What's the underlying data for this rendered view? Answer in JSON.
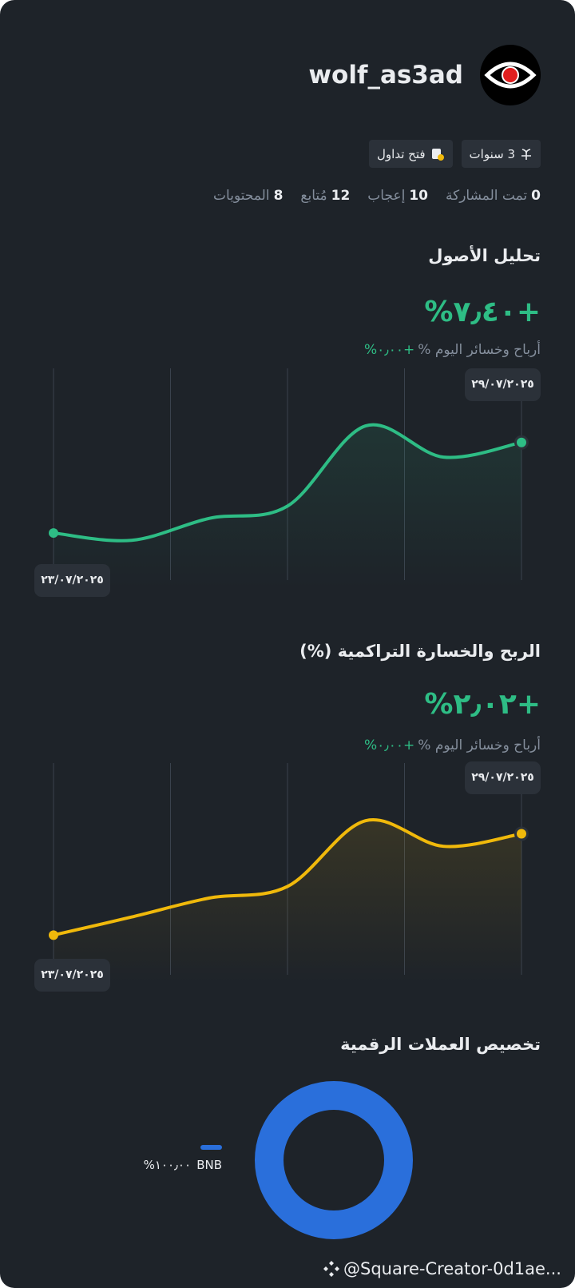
{
  "profile": {
    "username": "wolf_as3ad",
    "badges": [
      "3 سنوات",
      "فتح تداول"
    ],
    "stats": [
      {
        "value": 0,
        "label": "تمت المشاركة"
      },
      {
        "value": 10,
        "label": "إعجاب"
      },
      {
        "value": 12,
        "label": "مُتابع"
      },
      {
        "value": 8,
        "label": "المحتويات"
      }
    ]
  },
  "chart_data": [
    {
      "type": "line",
      "title": "تحليل الأصول",
      "headline": "+٧٫٤٠%",
      "subtitle": "أرباح وخسائر اليوم %",
      "subtitle_value": "+٠٫٠٠%",
      "categories": [
        "٢٣/٠٧/٢٠٢٥",
        null,
        null,
        null,
        null,
        null,
        "٢٩/٠٧/٢٠٢٥"
      ],
      "series": [
        {
          "color": "#2ebd85",
          "values": [
            0,
            -0.6,
            1.2,
            2.2,
            8.75,
            6.2,
            7.4
          ]
        }
      ],
      "ylim": [
        -4.5,
        12.8
      ]
    },
    {
      "type": "line",
      "title": "الربح والخسارة التراكمية (%)",
      "headline": "+٢٫٠٢%",
      "subtitle": "أرباح وخسائر اليوم %",
      "subtitle_value": "+٠٫٠٠%",
      "categories": [
        "٢٣/٠٧/٢٠٢٥",
        null,
        null,
        null,
        null,
        null,
        "٢٩/٠٧/٢٠٢٥"
      ],
      "series": [
        {
          "color": "#f0b90b",
          "values": [
            0,
            0.36,
            0.74,
            0.97,
            2.28,
            1.77,
            2.02
          ]
        }
      ],
      "ylim": [
        -0.95,
        3.27
      ]
    },
    {
      "type": "pie",
      "title": "تخصيص العملات الرقمية",
      "categories": [
        "BNB"
      ],
      "values": [
        100
      ],
      "value_labels": [
        "١٠٠٫٠٠%"
      ],
      "colors": [
        "#2a6fdb"
      ]
    }
  ],
  "footer": "@Square-Creator-0d1ae..."
}
